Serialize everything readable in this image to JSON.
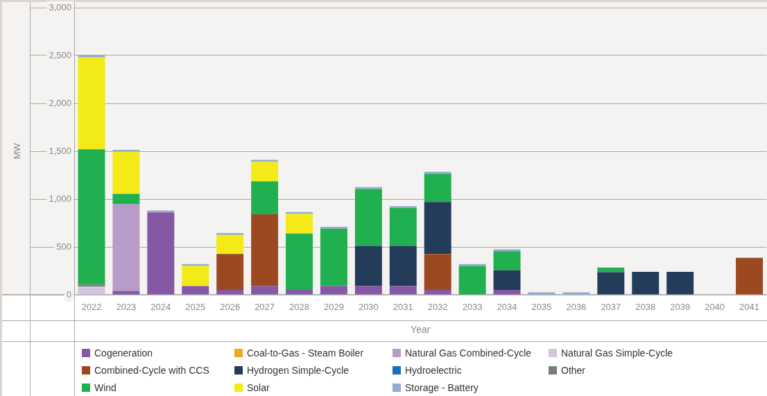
{
  "chart_data": {
    "type": "bar",
    "xlabel": "Year",
    "ylabel": "MW",
    "stacked": true,
    "grid": "y",
    "legend": "bottom",
    "categories": [
      "2022",
      "2023",
      "2024",
      "2025",
      "2026",
      "2027",
      "2028",
      "2029",
      "2030",
      "2031",
      "2032",
      "2033",
      "2034",
      "2035",
      "2036",
      "2037",
      "2038",
      "2039",
      "2040",
      "2041"
    ],
    "ylim": [
      0,
      3000
    ],
    "yticks": [
      0,
      500,
      {
        "value": 1000,
        "label": "1,000"
      },
      {
        "value": 1500,
        "label": "1,500"
      },
      {
        "value": 2000,
        "label": "2,000"
      },
      {
        "value": 2500,
        "label": "2,500"
      },
      {
        "value": 3000,
        "label": "3,000"
      }
    ],
    "series": [
      {
        "name": "Cogeneration",
        "color": "#8557a5",
        "values": [
          null,
          40,
          860,
          90,
          50,
          90,
          50,
          90,
          90,
          90,
          50,
          null,
          50,
          null,
          null,
          null,
          null,
          null,
          null,
          null
        ]
      },
      {
        "name": "Coal-to-Gas - Steam Boiler",
        "color": "#f0a823",
        "values": [
          null,
          null,
          null,
          null,
          null,
          null,
          null,
          null,
          null,
          null,
          null,
          null,
          null,
          null,
          null,
          null,
          null,
          null,
          null,
          null
        ]
      },
      {
        "name": "Natural Gas Combined-Cycle",
        "color": "#b79cc9",
        "values": [
          null,
          905,
          null,
          null,
          null,
          null,
          null,
          null,
          null,
          null,
          null,
          null,
          null,
          null,
          null,
          null,
          null,
          null,
          null,
          null
        ]
      },
      {
        "name": "Natural Gas Simple-Cycle",
        "color": "#d3c5de",
        "values": [
          85,
          null,
          null,
          null,
          null,
          null,
          null,
          null,
          null,
          null,
          null,
          null,
          null,
          null,
          null,
          null,
          null,
          null,
          null,
          null
        ]
      },
      {
        "name": "Combined-Cycle with CCS",
        "color": "#9c4922",
        "values": [
          null,
          null,
          null,
          null,
          375,
          750,
          null,
          null,
          null,
          null,
          375,
          null,
          null,
          null,
          null,
          null,
          null,
          null,
          null,
          385
        ]
      },
      {
        "name": "Hydrogen Simple-Cycle",
        "color": "#223c5a",
        "values": [
          null,
          null,
          null,
          null,
          null,
          null,
          null,
          null,
          420,
          420,
          545,
          null,
          205,
          null,
          null,
          235,
          240,
          240,
          null,
          null
        ]
      },
      {
        "name": "Hydroelectric",
        "color": "#1570bd",
        "values": [
          null,
          null,
          null,
          null,
          null,
          null,
          null,
          null,
          null,
          null,
          null,
          null,
          null,
          null,
          null,
          null,
          null,
          null,
          null,
          null
        ]
      },
      {
        "name": "Other",
        "color": "#7b7b7c",
        "values": [
          20,
          null,
          null,
          null,
          null,
          null,
          null,
          null,
          null,
          null,
          null,
          null,
          null,
          null,
          null,
          null,
          null,
          null,
          null,
          null
        ]
      },
      {
        "name": "Wind",
        "color": "#21b04f",
        "values": [
          1415,
          110,
          null,
          null,
          null,
          345,
          590,
          600,
          595,
          395,
          295,
          300,
          200,
          null,
          null,
          50,
          null,
          null,
          null,
          null
        ]
      },
      {
        "name": "Solar",
        "color": "#f3ea17",
        "values": [
          960,
          440,
          null,
          210,
          200,
          205,
          205,
          null,
          null,
          null,
          null,
          null,
          null,
          null,
          null,
          null,
          null,
          null,
          null,
          null
        ]
      },
      {
        "name": "Storage - Battery",
        "color": "#93acd1",
        "values": [
          20,
          20,
          20,
          20,
          20,
          20,
          20,
          20,
          20,
          20,
          20,
          20,
          20,
          25,
          25,
          null,
          null,
          null,
          null,
          null
        ]
      }
    ]
  }
}
